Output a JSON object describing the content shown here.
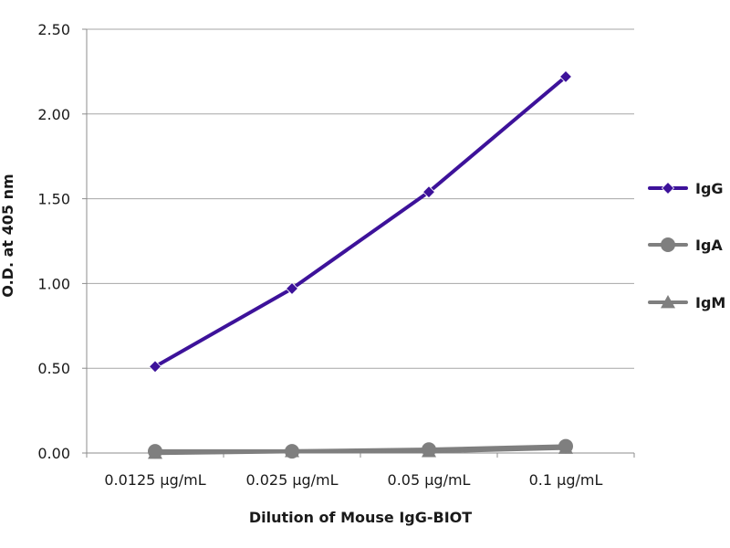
{
  "chart_data": {
    "type": "line",
    "xlabel": "Dilution of Mouse IgG-BIOT",
    "ylabel": "O.D. at 405 nm",
    "categories": [
      "0.0125 µg/mL",
      "0.025 µg/mL",
      "0.05 µg/mL",
      "0.1 µg/mL"
    ],
    "ylim": [
      0,
      2.5
    ],
    "yticks": [
      "0.00",
      "0.50",
      "1.00",
      "1.50",
      "2.00",
      "2.50"
    ],
    "ytick_values": [
      0,
      0.5,
      1.0,
      1.5,
      2.0,
      2.5
    ],
    "grid": true,
    "legend_position": "right",
    "series": [
      {
        "name": "IgG",
        "values": [
          0.51,
          0.97,
          1.54,
          2.22
        ],
        "color": "#3d129a",
        "marker": "diamond"
      },
      {
        "name": "IgA",
        "values": [
          0.01,
          0.01,
          0.02,
          0.04
        ],
        "color": "#7f7f7f",
        "marker": "circle"
      },
      {
        "name": "IgM",
        "values": [
          0.0,
          0.01,
          0.01,
          0.03
        ],
        "color": "#7f7f7f",
        "marker": "triangle"
      }
    ]
  }
}
